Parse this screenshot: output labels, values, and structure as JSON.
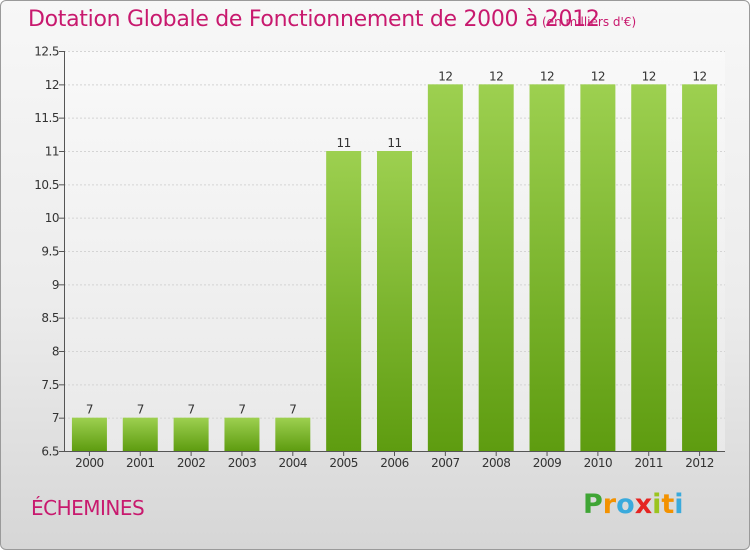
{
  "header": {
    "title": "Dotation Globale de Fonctionnement de 2000 à 2012",
    "unit": "(en milliers d'€)"
  },
  "footer": {
    "commune": "ÉCHEMINES",
    "logo": {
      "letters": [
        "P",
        "r",
        "o",
        "x",
        "i",
        "t",
        "i"
      ],
      "colors": [
        "#3fa535",
        "#f39200",
        "#3aaadc",
        "#e52421",
        "#9bc41f",
        "#f39200",
        "#3aaadc"
      ]
    }
  },
  "colors": {
    "bar_light": "#9dd050",
    "bar_dark": "#5e9c10",
    "accent": "#c8196e"
  },
  "chart_data": {
    "type": "bar",
    "categories": [
      "2000",
      "2001",
      "2002",
      "2003",
      "2004",
      "2005",
      "2006",
      "2007",
      "2008",
      "2009",
      "2010",
      "2011",
      "2012"
    ],
    "values": [
      7,
      7,
      7,
      7,
      7,
      11,
      11,
      12,
      12,
      12,
      12,
      12,
      12
    ],
    "data_labels": [
      "7",
      "7",
      "7",
      "7",
      "7",
      "11",
      "11",
      "12",
      "12",
      "12",
      "12",
      "12",
      "12"
    ],
    "title": "Dotation Globale de Fonctionnement de 2000 à 2012",
    "xlabel": "",
    "ylabel": "",
    "ylim": [
      6.5,
      12.5
    ],
    "yticks": [
      "6.5",
      "7",
      "7.5",
      "8",
      "8.5",
      "9",
      "9.5",
      "10",
      "10.5",
      "11",
      "11.5",
      "12",
      "12.5"
    ],
    "grid": true,
    "legend": "none"
  }
}
